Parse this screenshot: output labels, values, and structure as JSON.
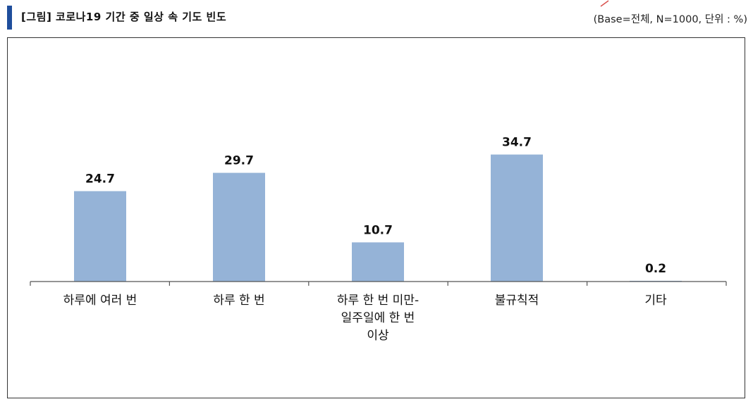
{
  "header": {
    "title": "[그림] 코로나19 기간 중 일상 속 기도 빈도",
    "base_note": "(Base=전체, N=1000, 단위 : %)"
  },
  "colors": {
    "bar": "#95b3d7",
    "title_accent": "#1f4e9c"
  },
  "chart_data": {
    "type": "bar",
    "title": "",
    "xlabel": "",
    "ylabel": "",
    "categories": [
      [
        "하루에 여러 번"
      ],
      [
        "하루 한 번"
      ],
      [
        "하루 한 번 미만-",
        "일주일에 한 번",
        "이상"
      ],
      [
        "불규칙적"
      ],
      [
        "기타"
      ]
    ],
    "values": [
      24.7,
      29.7,
      10.7,
      34.7,
      0.2
    ],
    "value_labels": [
      "24.7",
      "29.7",
      "10.7",
      "34.7",
      "0.2"
    ],
    "ylim": [
      0,
      60
    ],
    "grid": false,
    "legend": "none"
  }
}
